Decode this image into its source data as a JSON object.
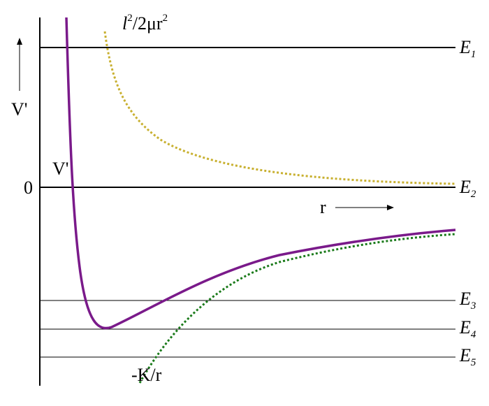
{
  "labels": {
    "centrifugal": [
      "l",
      "2",
      "/2μr",
      "2"
    ],
    "axis_v": "V'",
    "curve_v": "V'",
    "zero": "0",
    "r": "r",
    "coulomb": "-K/r",
    "energies": [
      {
        "base": "E",
        "sub": "1"
      },
      {
        "base": "E",
        "sub": "2"
      },
      {
        "base": "E",
        "sub": "3"
      },
      {
        "base": "E",
        "sub": "4"
      },
      {
        "base": "E",
        "sub": "5"
      }
    ]
  }
}
